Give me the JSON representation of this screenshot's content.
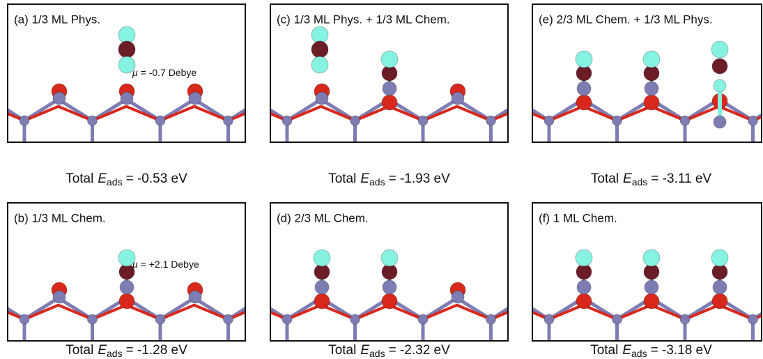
{
  "panels": [
    {
      "label": "(a) 1/3 ML Phys.",
      "dipole": {
        "symbol": "μ",
        "value": "= -0.7 Debye"
      },
      "energy": {
        "prefix": "Total",
        "symbol": "E",
        "subscript": "ads",
        "value": "= -0.53 eV"
      }
    },
    {
      "label": "(b) 1/3 ML Chem.",
      "dipole": {
        "symbol": "μ",
        "value": "= +2.1 Debye"
      },
      "energy": {
        "prefix": "Total",
        "symbol": "E",
        "subscript": "ads",
        "value": "= -1.28 eV"
      }
    },
    {
      "label": "(c) 1/3 ML Phys. + 1/3 ML Chem.",
      "energy": {
        "prefix": "Total",
        "symbol": "E",
        "subscript": "ads",
        "value": "= -1.93 eV"
      }
    },
    {
      "label": "(d) 2/3 ML Chem.",
      "energy": {
        "prefix": "Total",
        "symbol": "E",
        "subscript": "ads",
        "value": "= -2.32 eV"
      }
    },
    {
      "label": "(e) 2/3 ML Chem. + 1/3 ML Phys.",
      "energy": {
        "prefix": "Total",
        "symbol": "E",
        "subscript": "ads",
        "value": "= -3.11 eV"
      }
    },
    {
      "label": "(f) 1 ML Chem.",
      "energy": {
        "prefix": "Total",
        "symbol": "E",
        "subscript": "ads",
        "value": "= -3.18 eV"
      }
    }
  ]
}
